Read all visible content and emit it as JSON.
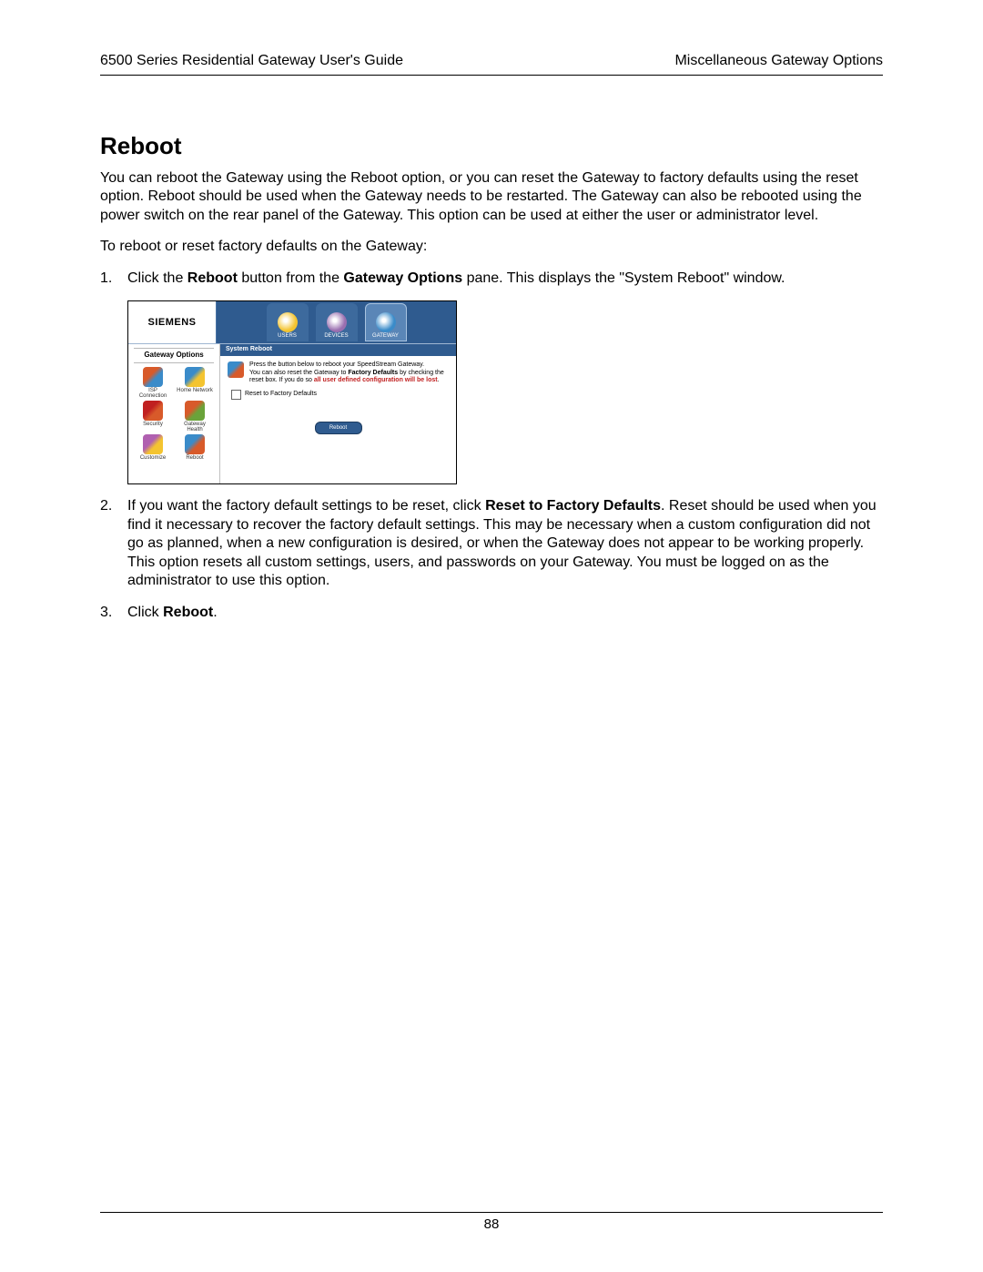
{
  "header": {
    "left": "6500 Series Residential Gateway User's Guide",
    "right": "Miscellaneous Gateway Options"
  },
  "title": "Reboot",
  "para1": "You can reboot the Gateway using the Reboot option, or you can reset the Gateway to factory defaults using the reset option. Reboot should be used when the Gateway needs to be restarted. The Gateway can also be rebooted using the power switch on the rear panel of the Gateway. This option can be used at either the user or administrator level.",
  "para2": "To reboot or reset factory defaults on the Gateway:",
  "step1": {
    "pre": "Click the ",
    "b1": "Reboot",
    "mid": " button from the ",
    "b2": "Gateway Options",
    "post": " pane. This displays the \"System Reboot\" window."
  },
  "step2": {
    "pre": "If you want the factory default settings to be reset, click ",
    "b1": "Reset to Factory Defaults",
    "post": ". Reset should be used when you find it necessary to recover the factory default settings. This may be necessary when a custom configuration did not go as planned, when a new configuration is desired, or when the Gateway does not appear to be working properly. This option resets all custom settings, users, and passwords on your Gateway. You must be logged on as the administrator to use this option."
  },
  "step3": {
    "pre": "Click ",
    "b1": "Reboot",
    "post": "."
  },
  "shot": {
    "logo": "SIEMENS",
    "tabs": {
      "users": "USERS",
      "devices": "DEVICES",
      "gateway": "GATEWAY"
    },
    "tab_colors": {
      "users": "#f4c430",
      "devices": "#9a6fb0",
      "gateway": "#3a8bc9"
    },
    "side_title": "Gateway Options",
    "side_items": [
      {
        "label": "ISP Connection",
        "c1": "#d85a2a",
        "c2": "#3a8bc9"
      },
      {
        "label": "Home Network",
        "c1": "#3a8bc9",
        "c2": "#f4c430"
      },
      {
        "label": "Security",
        "c1": "#c02020",
        "c2": "#d85a2a"
      },
      {
        "label": "Gateway Health",
        "c1": "#d85a2a",
        "c2": "#6aa33a"
      },
      {
        "label": "Customize",
        "c1": "#b060b0",
        "c2": "#f4c430"
      },
      {
        "label": "Reboot",
        "c1": "#3a8bc9",
        "c2": "#d85a2a"
      }
    ],
    "content_bar": "System Reboot",
    "content_icon_colors": {
      "c1": "#3a8bc9",
      "c2": "#d85a2a"
    },
    "content_line1": "Press the button below to reboot your SpeedStream Gateway.",
    "content_line2a": "You can also reset the Gateway to ",
    "content_line2b": "Factory Defaults",
    "content_line2c": " by checking the reset box. If you do so ",
    "content_red": "all user defined configuration will be lost",
    "content_dot": ".",
    "checkbox_label": "Reset to Factory Defaults",
    "button": "Reboot"
  },
  "page_number": "88"
}
